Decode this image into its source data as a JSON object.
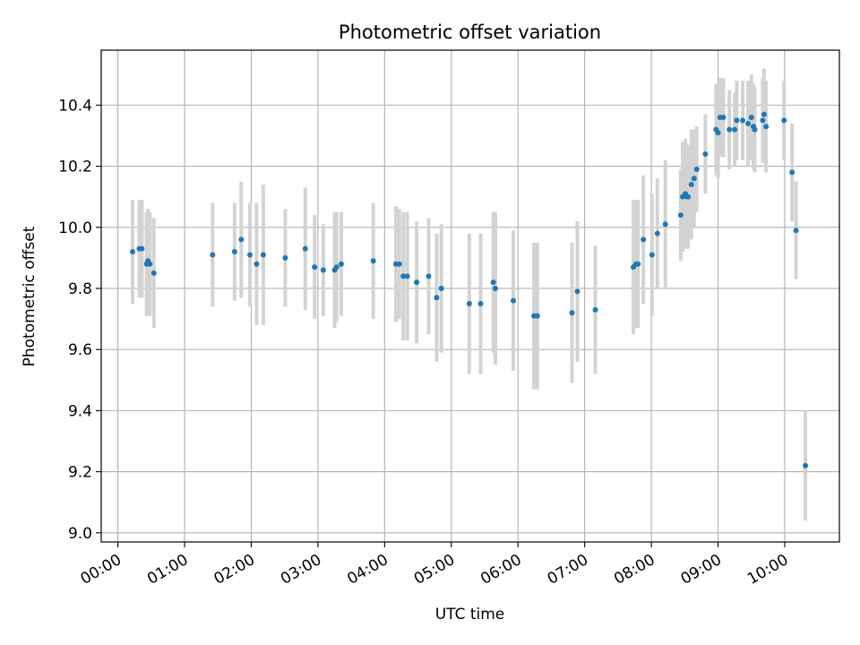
{
  "chart_data": {
    "type": "scatter",
    "title": "Photometric offset variation",
    "xlabel": "UTC time",
    "ylabel": "Photometric offset",
    "xlim": [
      -0.25,
      10.82
    ],
    "ylim": [
      8.97,
      10.58
    ],
    "grid": true,
    "xticks": [
      0,
      1,
      2,
      3,
      4,
      5,
      6,
      7,
      8,
      9,
      10
    ],
    "xtick_labels": [
      "00:00",
      "01:00",
      "02:00",
      "03:00",
      "04:00",
      "05:00",
      "06:00",
      "07:00",
      "08:00",
      "09:00",
      "10:00"
    ],
    "yticks": [
      9.0,
      9.2,
      9.4,
      9.6,
      9.8,
      10.0,
      10.2,
      10.4
    ],
    "ytick_labels": [
      "9.0",
      "9.2",
      "9.4",
      "9.6",
      "9.8",
      "10.0",
      "10.2",
      "10.4"
    ],
    "marker_color": "#1f77b4",
    "errorbar_color": "#d3d3d3",
    "series": [
      {
        "name": "offset",
        "x": [
          0.22,
          0.32,
          0.36,
          0.43,
          0.45,
          0.48,
          0.54,
          1.42,
          1.75,
          1.85,
          1.98,
          2.08,
          2.18,
          2.51,
          2.81,
          2.95,
          3.08,
          3.25,
          3.28,
          3.35,
          3.83,
          4.17,
          4.22,
          4.28,
          4.34,
          4.48,
          4.66,
          4.78,
          4.85,
          5.27,
          5.44,
          5.63,
          5.66,
          5.93,
          6.24,
          6.29,
          6.81,
          6.89,
          7.16,
          7.73,
          7.77,
          7.8,
          7.88,
          8.01,
          8.09,
          8.21,
          8.44,
          8.47,
          8.51,
          8.53,
          8.55,
          8.6,
          8.64,
          8.68,
          8.81,
          8.97,
          9.0,
          9.03,
          9.08,
          9.17,
          9.25,
          9.28,
          9.37,
          9.45,
          9.5,
          9.53,
          9.55,
          9.67,
          9.69,
          9.72,
          9.99,
          10.11,
          10.17,
          10.31
        ],
        "y": [
          9.92,
          9.93,
          9.93,
          9.88,
          9.89,
          9.88,
          9.85,
          9.91,
          9.92,
          9.96,
          9.91,
          9.88,
          9.91,
          9.9,
          9.93,
          9.87,
          9.86,
          9.86,
          9.87,
          9.88,
          9.89,
          9.88,
          9.88,
          9.84,
          9.84,
          9.82,
          9.84,
          9.77,
          9.8,
          9.75,
          9.75,
          9.82,
          9.8,
          9.76,
          9.71,
          9.71,
          9.72,
          9.79,
          9.73,
          9.87,
          9.88,
          9.88,
          9.96,
          9.91,
          9.98,
          10.01,
          10.04,
          10.1,
          10.11,
          10.1,
          10.1,
          10.14,
          10.16,
          10.19,
          10.24,
          10.32,
          10.31,
          10.36,
          10.36,
          10.32,
          10.32,
          10.35,
          10.35,
          10.34,
          10.36,
          10.33,
          10.32,
          10.35,
          10.37,
          10.33,
          10.35,
          10.18,
          9.99,
          9.22
        ],
        "yerr": [
          0.17,
          0.16,
          0.16,
          0.17,
          0.17,
          0.17,
          0.18,
          0.17,
          0.16,
          0.19,
          0.17,
          0.2,
          0.23,
          0.16,
          0.2,
          0.17,
          0.15,
          0.19,
          0.18,
          0.17,
          0.19,
          0.19,
          0.18,
          0.21,
          0.21,
          0.2,
          0.19,
          0.21,
          0.21,
          0.23,
          0.23,
          0.23,
          0.25,
          0.23,
          0.24,
          0.24,
          0.23,
          0.23,
          0.21,
          0.22,
          0.21,
          0.21,
          0.21,
          0.2,
          0.18,
          0.21,
          0.15,
          0.18,
          0.18,
          0.17,
          0.17,
          0.18,
          0.16,
          0.14,
          0.13,
          0.15,
          0.15,
          0.13,
          0.13,
          0.13,
          0.12,
          0.13,
          0.13,
          0.14,
          0.14,
          0.14,
          0.14,
          0.14,
          0.15,
          0.15,
          0.13,
          0.16,
          0.16,
          0.18
        ]
      }
    ]
  }
}
